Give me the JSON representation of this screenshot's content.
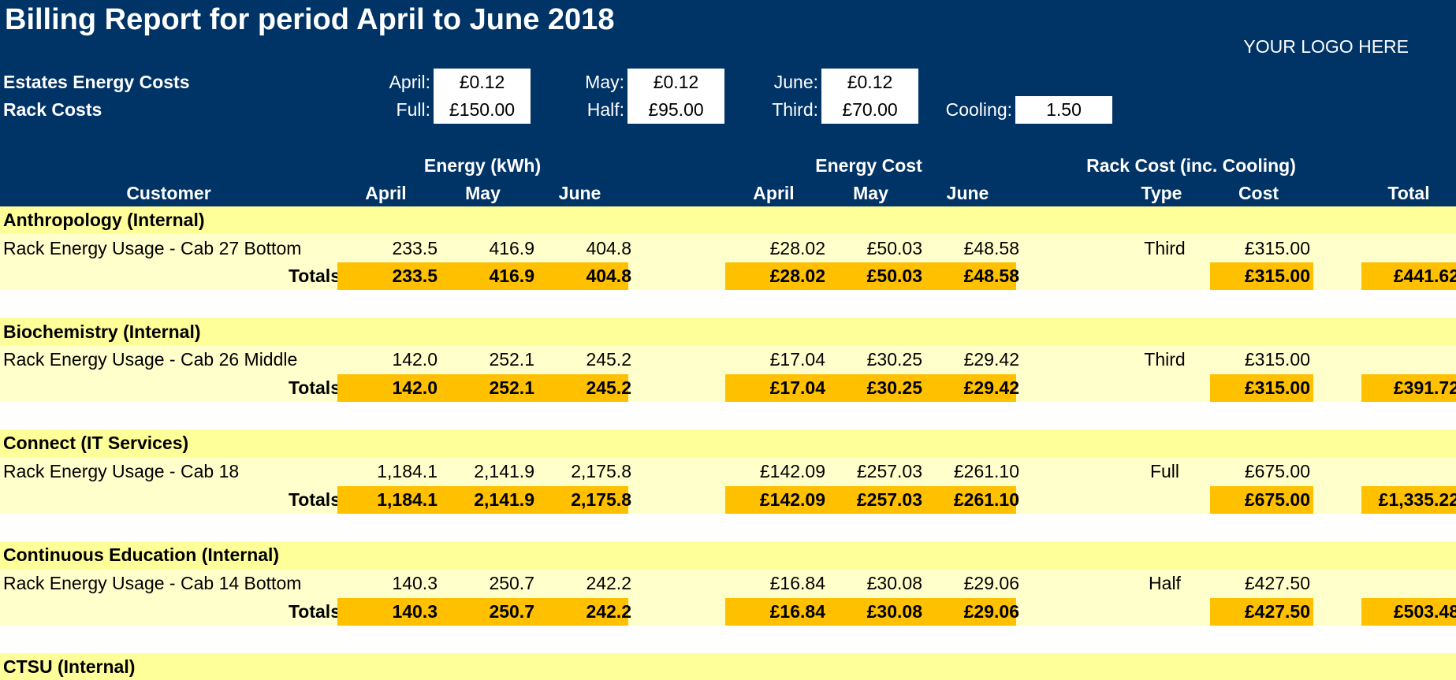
{
  "report": {
    "title": "Billing Report for period April to June 2018",
    "logo_text": "YOUR LOGO HERE"
  },
  "rates": {
    "energy_label": "Estates Energy Costs",
    "rack_label": "Rack Costs",
    "energy": [
      {
        "label": "April:",
        "value": "£0.12"
      },
      {
        "label": "May:",
        "value": "£0.12"
      },
      {
        "label": "June:",
        "value": "£0.12"
      }
    ],
    "rack": [
      {
        "label": "Full:",
        "value": "£150.00"
      },
      {
        "label": "Half:",
        "value": "£95.00"
      },
      {
        "label": "Third:",
        "value": "£70.00"
      },
      {
        "label": "Cooling:",
        "value": "1.50"
      }
    ]
  },
  "columns": {
    "group_energy": "Energy (kWh)",
    "group_cost": "Energy Cost",
    "group_rack": "Rack Cost (inc. Cooling)",
    "customer": "Customer",
    "april": "April",
    "may": "May",
    "june": "June",
    "cost_april": "April",
    "cost_may": "May",
    "cost_june": "June",
    "type": "Type",
    "cost": "Cost",
    "total": "Total"
  },
  "customers": [
    {
      "name": "Anthropology (Internal)",
      "detail": {
        "label": "Rack Energy Usage - Cab 27 Bottom",
        "april": "233.5",
        "may": "416.9",
        "june": "404.8",
        "cost_april": "£28.02",
        "cost_may": "£50.03",
        "cost_june": "£48.58",
        "type": "Third",
        "cost": "£315.00"
      },
      "totals": {
        "label": "Totals",
        "april": "233.5",
        "may": "416.9",
        "june": "404.8",
        "cost_april": "£28.02",
        "cost_may": "£50.03",
        "cost_june": "£48.58",
        "cost": "£315.00",
        "total": "£441.62"
      }
    },
    {
      "name": "Biochemistry (Internal)",
      "detail": {
        "label": "Rack Energy Usage - Cab 26 Middle",
        "april": "142.0",
        "may": "252.1",
        "june": "245.2",
        "cost_april": "£17.04",
        "cost_may": "£30.25",
        "cost_june": "£29.42",
        "type": "Third",
        "cost": "£315.00"
      },
      "totals": {
        "label": "Totals",
        "april": "142.0",
        "may": "252.1",
        "june": "245.2",
        "cost_april": "£17.04",
        "cost_may": "£30.25",
        "cost_june": "£29.42",
        "cost": "£315.00",
        "total": "£391.72"
      }
    },
    {
      "name": "Connect (IT Services)",
      "detail": {
        "label": "Rack Energy Usage - Cab 18",
        "april": "1,184.1",
        "may": "2,141.9",
        "june": "2,175.8",
        "cost_april": "£142.09",
        "cost_may": "£257.03",
        "cost_june": "£261.10",
        "type": "Full",
        "cost": "£675.00"
      },
      "totals": {
        "label": "Totals",
        "april": "1,184.1",
        "may": "2,141.9",
        "june": "2,175.8",
        "cost_april": "£142.09",
        "cost_may": "£257.03",
        "cost_june": "£261.10",
        "cost": "£675.00",
        "total": "£1,335.22"
      }
    },
    {
      "name": "Continuous Education (Internal)",
      "detail": {
        "label": "Rack Energy Usage - Cab 14 Bottom",
        "april": "140.3",
        "may": "250.7",
        "june": "242.2",
        "cost_april": "£16.84",
        "cost_may": "£30.08",
        "cost_june": "£29.06",
        "type": "Half",
        "cost": "£427.50"
      },
      "totals": {
        "label": "Totals",
        "april": "140.3",
        "may": "250.7",
        "june": "242.2",
        "cost_april": "£16.84",
        "cost_may": "£30.08",
        "cost_june": "£29.06",
        "cost": "£427.50",
        "total": "£503.48"
      }
    }
  ],
  "trailing_section": {
    "name": "CTSU (Internal)"
  }
}
